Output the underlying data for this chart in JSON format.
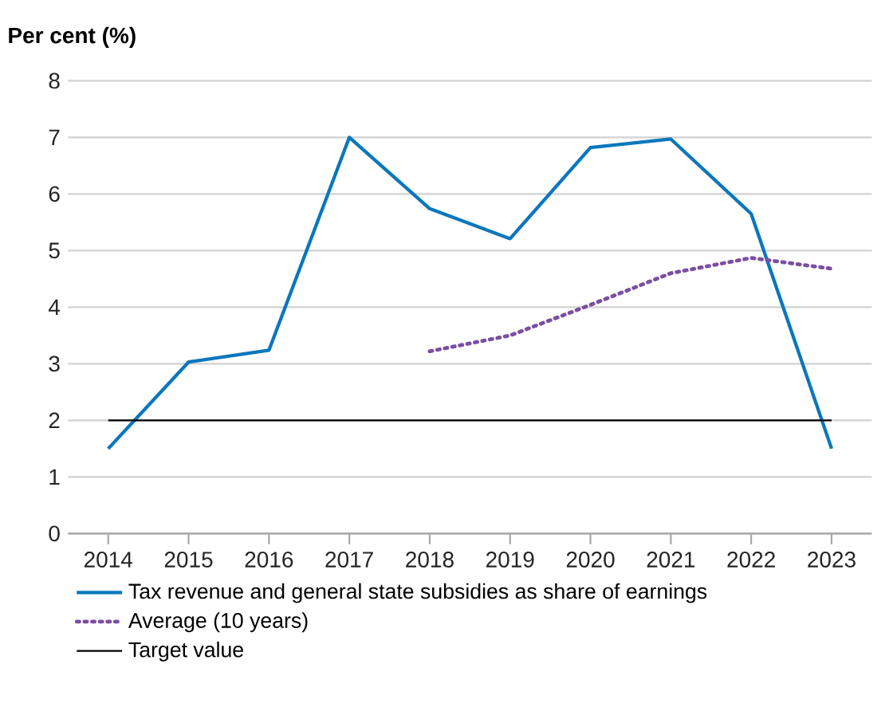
{
  "chart_data": {
    "type": "line",
    "ylabel": "Per cent (%)",
    "categories": [
      "2014",
      "2015",
      "2016",
      "2017",
      "2018",
      "2019",
      "2020",
      "2021",
      "2022",
      "2023"
    ],
    "series": [
      {
        "name": "Tax revenue and general state subsidies as share of earnings",
        "color": "#0a77bd",
        "line_style": "solid",
        "values": [
          1.5,
          3.03,
          3.24,
          7.0,
          5.74,
          5.21,
          6.82,
          6.97,
          5.65,
          1.5
        ]
      },
      {
        "name": "Average (10 years)",
        "color": "#7a4fa3",
        "line_style": "dotted",
        "values": [
          null,
          null,
          null,
          null,
          3.22,
          3.5,
          4.04,
          4.6,
          4.87,
          4.68
        ]
      },
      {
        "name": "Target value",
        "color": "#000000",
        "line_style": "solid",
        "values": [
          2,
          2,
          2,
          2,
          2,
          2,
          2,
          2,
          2,
          2
        ]
      }
    ],
    "ylim": [
      0,
      8
    ],
    "yticks": [
      0,
      1,
      2,
      3,
      4,
      5,
      6,
      7,
      8
    ],
    "grid": "y",
    "legend": "bottom",
    "marker": "none"
  }
}
